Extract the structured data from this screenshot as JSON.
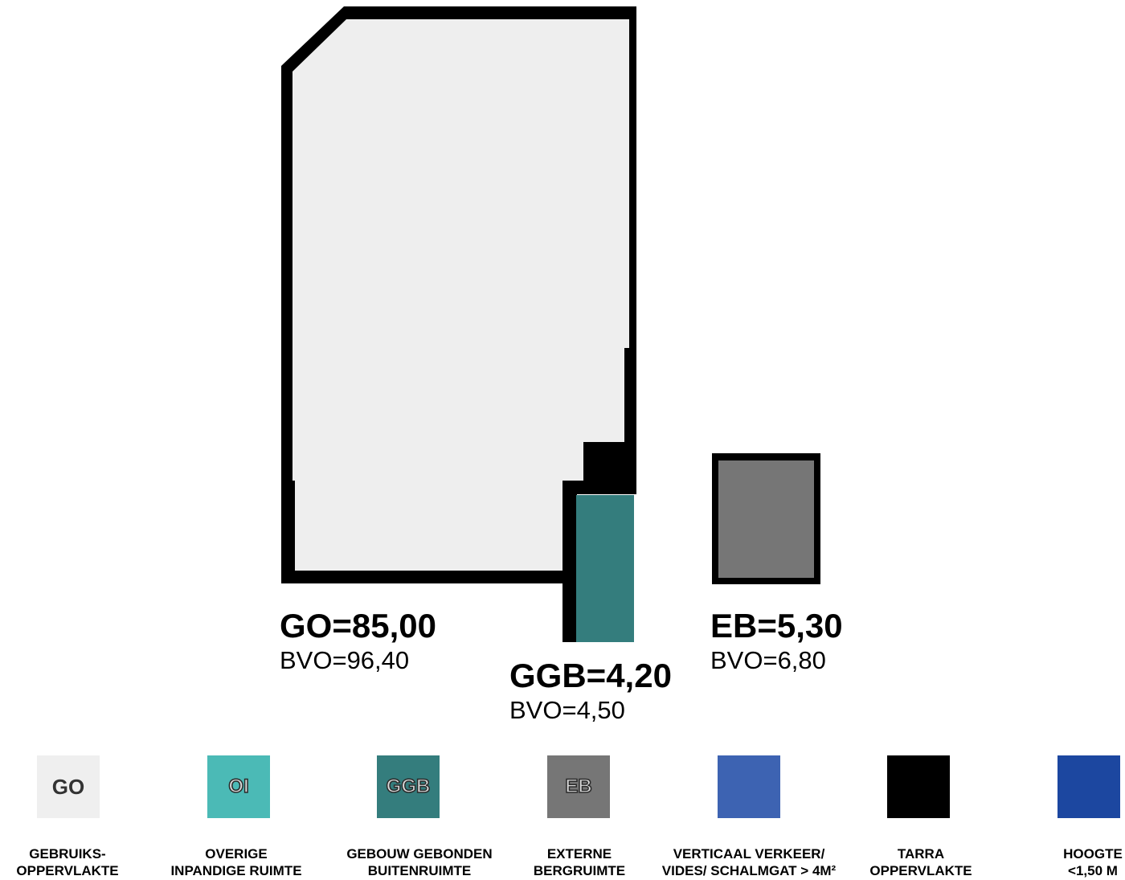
{
  "colors": {
    "go": "#eeeeee",
    "oi": "#4bbab6",
    "ggb": "#347d7d",
    "eb": "#767676",
    "verkeer": "#3d63b2",
    "tarra": "#000000",
    "hoogte": "#1c47a0",
    "outline": "#000000"
  },
  "areas": {
    "go": {
      "code": "GO=85,00",
      "bvo": "BVO=96,40"
    },
    "ggb": {
      "code": "GGB=4,20",
      "bvo": "BVO=4,50"
    },
    "eb": {
      "code": "EB=5,30",
      "bvo": "BVO=6,80"
    }
  },
  "legend": [
    {
      "swatch_text": "GO",
      "label": "GEBRUIKS-\nOPPERVLAKTE",
      "color": "#efefef",
      "text_style": "dark"
    },
    {
      "swatch_text": "OI",
      "label": "OVERIGE\nINPANDIGE RUIMTE",
      "color": "#4bbab6",
      "text_style": "outlined"
    },
    {
      "swatch_text": "GGB",
      "label": "GEBOUW GEBONDEN\nBUITENRUIMTE",
      "color": "#347d7d",
      "text_style": "outlined"
    },
    {
      "swatch_text": "EB",
      "label": "EXTERNE\nBERGRUIMTE",
      "color": "#767676",
      "text_style": "outlined"
    },
    {
      "swatch_text": "",
      "label": "VERTICAAL VERKEER/\nVIDES/ SCHALMGAT > 4M²",
      "color": "#3d63b2",
      "text_style": "none"
    },
    {
      "swatch_text": "",
      "label": "TARRA\nOPPERVLAKTE",
      "color": "#000000",
      "text_style": "none"
    },
    {
      "swatch_text": "",
      "label": "HOOGTE\n<1,50 M",
      "color": "#1c47a0",
      "text_style": "none"
    }
  ]
}
